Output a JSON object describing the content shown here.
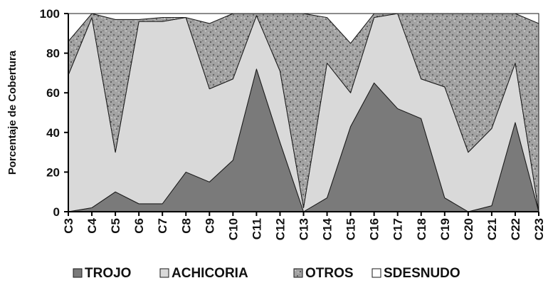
{
  "chart_data": {
    "type": "area",
    "stacked": true,
    "ylabel": "Porcentaje de Cobertura",
    "xlabel": "",
    "title": "",
    "ylim": [
      0,
      100
    ],
    "yticks": [
      0,
      20,
      40,
      60,
      80,
      100
    ],
    "categories": [
      "C3",
      "C4",
      "C5",
      "C6",
      "C7",
      "C8",
      "C9",
      "C10",
      "C11",
      "C12",
      "C13",
      "C14",
      "C15",
      "C16",
      "C17",
      "C18",
      "C19",
      "C20",
      "C21",
      "C22",
      "C23"
    ],
    "series": [
      {
        "name": "TROJO",
        "color": "#7a7a7a",
        "pattern": "solid",
        "values": [
          0,
          2,
          10,
          4,
          4,
          20,
          15,
          26,
          72,
          35,
          0,
          7,
          43,
          65,
          52,
          47,
          7,
          0,
          3,
          45,
          0
        ]
      },
      {
        "name": "ACHICORIA",
        "color": "#d9d9d9",
        "pattern": "solid",
        "values": [
          69,
          96,
          20,
          92,
          92,
          78,
          47,
          41,
          27,
          36,
          2,
          68,
          17,
          33,
          48,
          20,
          56,
          30,
          39,
          30,
          0
        ]
      },
      {
        "name": "OTROS",
        "color": "#9a9a9a",
        "pattern": "speckled",
        "values": [
          17,
          2,
          67,
          1,
          2,
          0,
          33,
          33,
          1,
          29,
          98,
          23,
          25,
          2,
          0,
          33,
          37,
          70,
          58,
          25,
          95
        ]
      },
      {
        "name": "SDESNUDO",
        "color": "#ffffff",
        "pattern": "solid",
        "values": [
          14,
          0,
          3,
          3,
          2,
          2,
          5,
          0,
          0,
          0,
          0,
          2,
          15,
          0,
          0,
          0,
          0,
          0,
          0,
          0,
          5
        ]
      }
    ],
    "grid": false,
    "legend_position": "bottom"
  }
}
